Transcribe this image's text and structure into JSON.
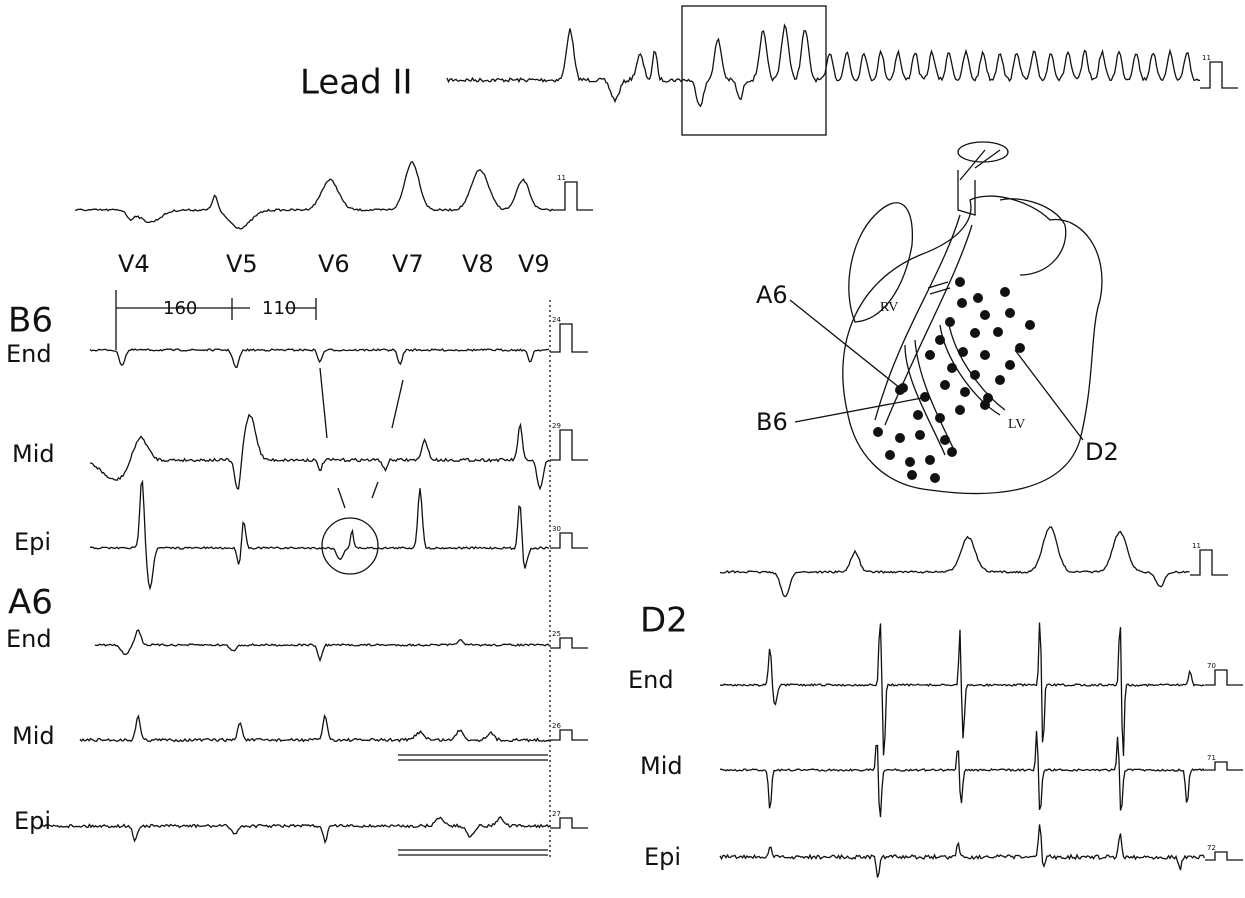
{
  "lead_ii": {
    "label": "Lead II",
    "calibration": "11"
  },
  "precordial": {
    "calibration": "11",
    "leads": [
      "V4",
      "V5",
      "V6",
      "V7",
      "V8",
      "V9"
    ]
  },
  "b6": {
    "label": "B6",
    "interval_1": "160",
    "interval_2": "110",
    "rows": [
      {
        "layer": "End",
        "calibration": "24"
      },
      {
        "layer": "Mid",
        "calibration": "29"
      },
      {
        "layer": "Epi",
        "calibration": "30"
      }
    ]
  },
  "a6": {
    "label": "A6",
    "rows": [
      {
        "layer": "End",
        "calibration": "25"
      },
      {
        "layer": "Mid",
        "calibration": "26"
      },
      {
        "layer": "Epi",
        "calibration": "27"
      }
    ]
  },
  "d2": {
    "label": "D2",
    "calibration_top": "11",
    "rows": [
      {
        "layer": "End",
        "calibration": "70"
      },
      {
        "layer": "Mid",
        "calibration": "71"
      },
      {
        "layer": "Epi",
        "calibration": "72"
      }
    ]
  },
  "heart_diagram": {
    "rv": "RV",
    "lv": "LV",
    "a6": "A6",
    "b6": "B6",
    "d2": "D2"
  }
}
